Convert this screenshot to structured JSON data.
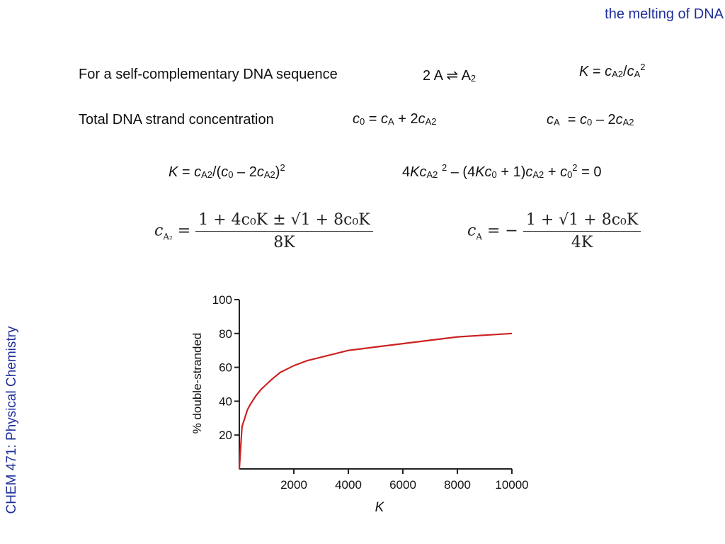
{
  "header": {
    "title": "the melting of DNA",
    "side_label": "CHEM 471: Physical Chemistry"
  },
  "rows": {
    "r1_label": "For  a self-complementary DNA sequence",
    "r1_reaction": "2 A ⇌ A",
    "r1_reaction_sub": "2",
    "r2_label": "Total DNA strand concentration"
  },
  "formulas": {
    "cA2_lhs_var": "c",
    "cA2_lhs_sub": "A₂",
    "cA2_equals": " = ",
    "cA2_num": "1 + 4c₀K ± √1 + 8c₀K",
    "cA2_den": "8K",
    "cA_lhs_var": "c",
    "cA_lhs_sub": "A",
    "cA_equals": " = −",
    "cA_num": "1 + √1 + 8c₀K",
    "cA_den": "4K"
  },
  "chart_data": {
    "type": "line",
    "title": "",
    "xlabel": "K",
    "ylabel": "% double-stranded",
    "xlim": [
      0,
      10000
    ],
    "ylim": [
      0,
      100
    ],
    "x_ticks": [
      2000,
      4000,
      6000,
      8000,
      10000
    ],
    "y_ticks": [
      20,
      40,
      60,
      80,
      100
    ],
    "x_tick_labels": [
      "2000",
      "4000",
      "6000",
      "8000",
      "10000"
    ],
    "y_tick_labels": [
      "20",
      "40",
      "60",
      "80",
      "100"
    ],
    "grid": false,
    "colors": {
      "series": "#cc2222",
      "axis": "#222222"
    },
    "series": [
      {
        "x": [
          0,
          100,
          200,
          300,
          400,
          600,
          800,
          1000,
          1200,
          1500,
          2000,
          2500,
          3000,
          4000,
          5000,
          6000,
          7000,
          8000,
          9000,
          10000
        ],
        "y": [
          0,
          25,
          30,
          35,
          38,
          43,
          47,
          50,
          53,
          57,
          61,
          64,
          66,
          70,
          72,
          74,
          76,
          78,
          79,
          80
        ]
      }
    ]
  }
}
